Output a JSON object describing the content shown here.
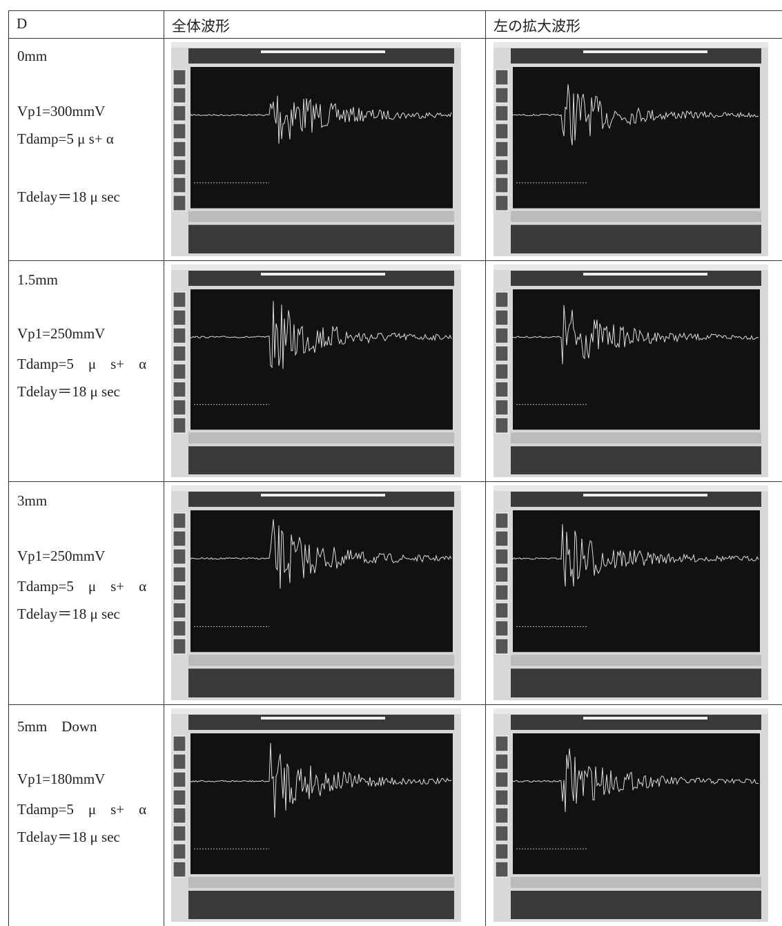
{
  "header": [
    "D",
    "全体波形",
    "左の拡大波形"
  ],
  "rows": [
    {
      "label": "0mm",
      "params": [
        "Vp1=300mmV",
        "Tdamp=5 μ s+ α",
        "Tdelay＝18 μ sec"
      ]
    },
    {
      "label": "1.5mm",
      "params": [
        "Vp1=250mmV",
        "Tdamp=5　μ　s+　α",
        "Tdelay＝18 μ sec"
      ]
    },
    {
      "label": "3mm",
      "params": [
        "Vp1=250mmV",
        "Tdamp=5　μ　s+　α",
        "Tdelay＝18 μ sec"
      ]
    },
    {
      "label": "5mm　Down",
      "params": [
        "Vp1=180mmV",
        "Tdamp=5　μ　s+　α",
        "Tdelay＝18 μ sec"
      ]
    }
  ]
}
